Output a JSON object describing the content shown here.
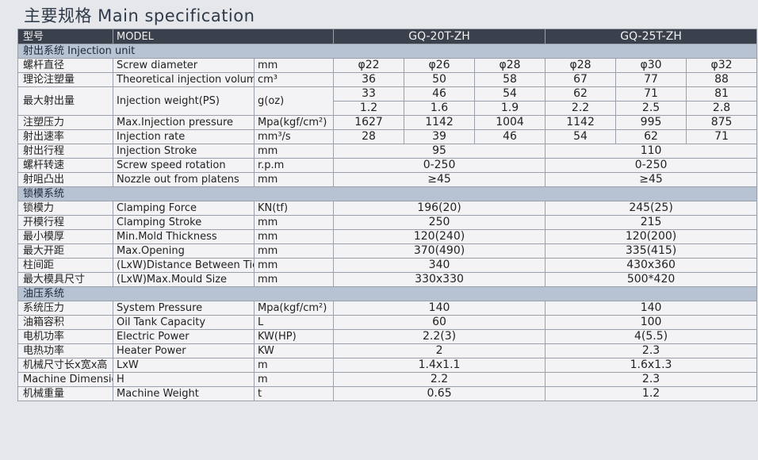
{
  "title": "主要规格 Main specification",
  "header": {
    "cn": "型号",
    "en": "MODEL",
    "models": [
      "GQ-20T-ZH",
      "GQ-25T-ZH"
    ]
  },
  "sections": [
    {
      "title": "射出系统 Injection unit",
      "rows": [
        {
          "cn": "螺杆直径",
          "en": "Screw diameter",
          "unit": "mm",
          "values": [
            "φ22",
            "φ26",
            "φ28",
            "φ28",
            "φ30",
            "φ32"
          ]
        },
        {
          "cn": "理论注塑量",
          "en": "Theoretical injection volume",
          "unit": "cm³",
          "values": [
            36,
            50,
            58,
            67,
            77,
            88
          ]
        },
        {
          "cn": "最大射出量",
          "en": "Injection weight(PS)",
          "unit": "g(oz)",
          "values": [
            33,
            46,
            54,
            62,
            71,
            81
          ],
          "values2": [
            1.2,
            1.6,
            1.9,
            2.2,
            2.5,
            2.8
          ]
        },
        {
          "cn": "注塑压力",
          "en": "Max.Injection pressure",
          "unit": "Mpa(kgf/cm²)",
          "values": [
            1627,
            1142,
            1004,
            1142,
            995,
            875
          ]
        },
        {
          "cn": "射出速率",
          "en": "Injection rate",
          "unit": "mm³/s",
          "values": [
            28,
            39,
            46,
            54,
            62,
            71
          ]
        },
        {
          "cn": "射出行程",
          "en": "Injection Stroke",
          "unit": "mm",
          "values": [
            95,
            110
          ]
        },
        {
          "cn": "螺杆转速",
          "en": "Screw speed rotation",
          "unit": "r.p.m",
          "values": [
            "0-250",
            "0-250"
          ]
        },
        {
          "cn": "射咀凸出",
          "en": "Nozzle out from platens",
          "unit": "mm",
          "values": [
            "≥45",
            "≥45"
          ]
        }
      ]
    },
    {
      "title": "锁模系统",
      "rows": [
        {
          "cn": "锁模力",
          "en": "Clamping Force",
          "unit": "KN(tf)",
          "values": [
            "196(20)",
            "245(25)"
          ]
        },
        {
          "cn": "开模行程",
          "en": "Clamping Stroke",
          "unit": "mm",
          "values": [
            250,
            215
          ]
        },
        {
          "cn": "最小模厚",
          "en": "Min.Mold Thickness",
          "unit": "mm",
          "values": [
            "120(240)",
            "120(200)"
          ]
        },
        {
          "cn": "最大开距",
          "en": "Max.Opening",
          "unit": "mm",
          "values": [
            "370(490)",
            "335(415)"
          ]
        },
        {
          "cn": "柱间距",
          "en": "(LxW)Distance Between Tie Bars",
          "unit": "mm",
          "values": [
            340,
            "430x360"
          ]
        },
        {
          "cn": "最大模具尺寸",
          "en": "(LxW)Max.Mould Size",
          "unit": "mm",
          "values": [
            "330x330",
            "500*420"
          ]
        }
      ]
    },
    {
      "title": "油压系统",
      "rows": [
        {
          "cn": "系统压力",
          "en": "System Pressure",
          "unit": "Mpa(kgf/cm²)",
          "values": [
            140,
            140
          ]
        },
        {
          "cn": "油箱容积",
          "en": "Oil Tank Capacity",
          "unit": "L",
          "values": [
            60,
            100
          ]
        },
        {
          "cn": "电机功率",
          "en": "Electric Power",
          "unit": "KW(HP)",
          "values": [
            "2.2(3)",
            "4(5.5)"
          ]
        },
        {
          "cn": "电热功率",
          "en": "Heater Power",
          "unit": "KW",
          "values": [
            2,
            2.3
          ]
        },
        {
          "cn": "机械尺寸长x宽x高",
          "en": "LxW",
          "unit": "m",
          "values": [
            "1.4x1.1",
            "1.6x1.3"
          ]
        },
        {
          "cn": "Machine Dimensions",
          "en": "H",
          "unit": "m",
          "values": [
            2.2,
            2.3
          ]
        },
        {
          "cn": "机械重量",
          "en": "Machine Weight",
          "unit": "t",
          "values": [
            0.65,
            1.2
          ]
        }
      ]
    }
  ]
}
